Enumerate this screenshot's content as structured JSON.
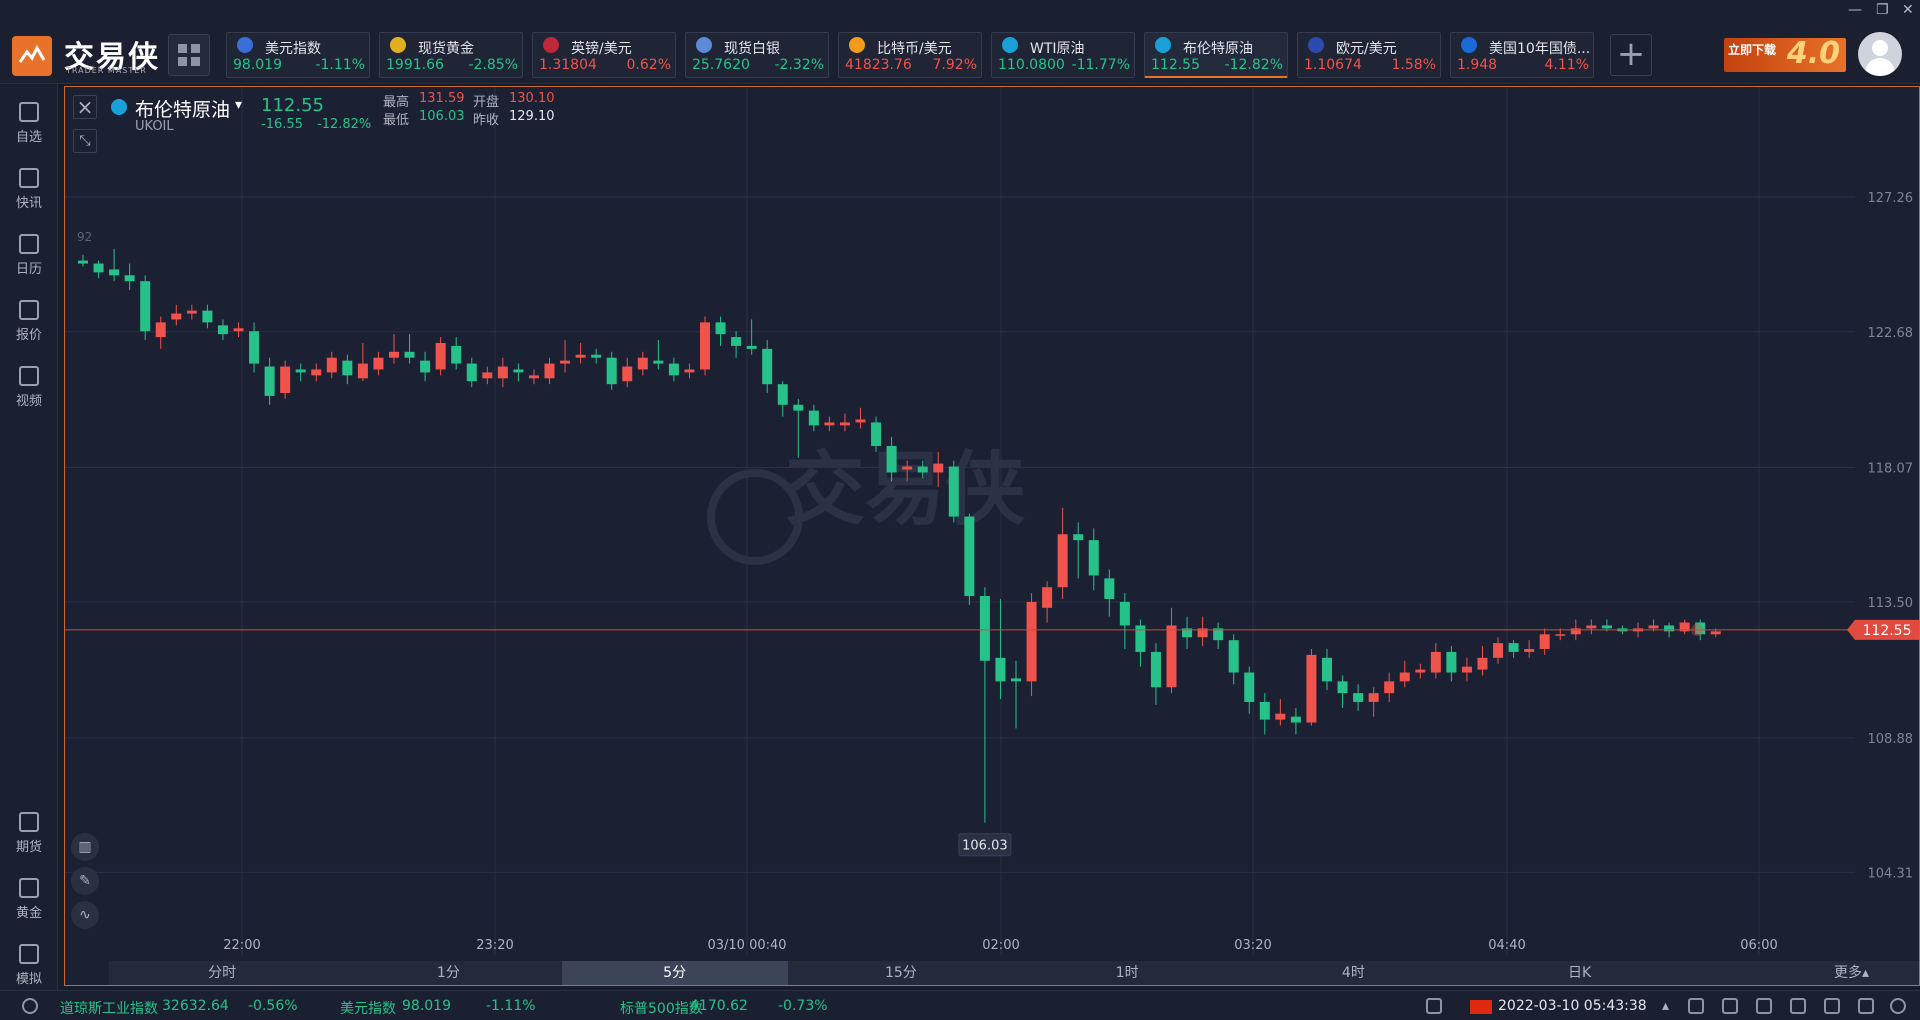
{
  "window": {
    "minimize": "—",
    "restore": "❐",
    "close": "✕"
  },
  "brand": {
    "name": "交易侠",
    "sub": "TRADER MASTER"
  },
  "tickers": [
    {
      "name": "美元指数",
      "price": "98.019",
      "change": "-1.11%",
      "dir": "down",
      "icon_color": "#3a6fd8",
      "icon": "us-flag-icon"
    },
    {
      "name": "现货黄金",
      "price": "1991.66",
      "change": "-2.85%",
      "dir": "down",
      "icon_color": "#e0b020",
      "icon": "gold-icon"
    },
    {
      "name": "英镑/美元",
      "price": "1.31804",
      "change": "0.62%",
      "dir": "up",
      "icon_color": "#c0283a",
      "icon": "uk-flag-icon"
    },
    {
      "name": "现货白银",
      "price": "25.7620",
      "change": "-2.32%",
      "dir": "down",
      "icon_color": "#5a8ad8",
      "icon": "silver-icon"
    },
    {
      "name": "比特币/美元",
      "price": "41823.76",
      "change": "7.92%",
      "dir": "up",
      "icon_color": "#f29a1a",
      "icon": "bitcoin-icon"
    },
    {
      "name": "WTI原油",
      "price": "110.0800",
      "change": "-11.77%",
      "dir": "down",
      "icon_color": "#1aa0d8",
      "icon": "oil-icon"
    },
    {
      "name": "布伦特原油",
      "price": "112.55",
      "change": "-12.82%",
      "dir": "down",
      "icon_color": "#1aa0d8",
      "icon": "oil-icon",
      "active": true
    },
    {
      "name": "欧元/美元",
      "price": "1.10674",
      "change": "1.58%",
      "dir": "up",
      "icon_color": "#2a4ab0",
      "icon": "eu-flag-icon"
    },
    {
      "name": "美国10年国债...",
      "price": "1.948",
      "change": "4.11%",
      "dir": "up",
      "icon_color": "#1a6ad8",
      "icon": "bond-chart-icon"
    }
  ],
  "promo": {
    "text": "立即下载",
    "num": "4.0"
  },
  "sidebar": [
    {
      "label": "自选",
      "icon": "watchlist-icon"
    },
    {
      "label": "快讯",
      "icon": "news-icon"
    },
    {
      "label": "日历",
      "icon": "calendar-icon"
    },
    {
      "label": "报价",
      "icon": "quote-icon"
    },
    {
      "label": "视频",
      "icon": "video-icon"
    },
    {
      "label": "期货",
      "icon": "futures-icon"
    },
    {
      "label": "黄金",
      "icon": "gold-bar-icon"
    },
    {
      "label": "模拟",
      "icon": "simulate-icon"
    }
  ],
  "symbol": {
    "name": "布伦特原油",
    "code": "UKOIL",
    "price": "112.55",
    "change": "-16.55",
    "pct": "-12.82%",
    "high_label": "最高",
    "high": "131.59",
    "open_label": "开盘",
    "open": "130.10",
    "low_label": "最低",
    "low": "106.03",
    "prev_label": "昨收",
    "prev": "129.10"
  },
  "chart_data": {
    "type": "candlestick",
    "ylim": [
      101.5,
      131.0
    ],
    "y_ticks": [
      "127.26",
      "122.68",
      "118.07",
      "113.50",
      "108.88",
      "104.31"
    ],
    "x_ticks": [
      "22:00",
      "23:20",
      "03/10 00:40",
      "02:00",
      "03:20",
      "04:40",
      "06:00"
    ],
    "last_price": "112.55",
    "low_marker": "106.03",
    "partial_label": "92",
    "candles": [
      [
        125.1,
        125.0,
        125.3,
        124.9
      ],
      [
        125.0,
        124.7,
        125.1,
        124.5
      ],
      [
        124.8,
        124.6,
        125.5,
        124.4
      ],
      [
        124.6,
        124.4,
        125.0,
        124.1
      ],
      [
        124.4,
        122.7,
        124.6,
        122.4
      ],
      [
        122.5,
        123.0,
        123.2,
        122.1
      ],
      [
        123.1,
        123.3,
        123.6,
        122.9
      ],
      [
        123.3,
        123.4,
        123.6,
        123.1
      ],
      [
        123.4,
        123.0,
        123.6,
        122.8
      ],
      [
        122.9,
        122.6,
        123.1,
        122.4
      ],
      [
        122.7,
        122.8,
        123.0,
        122.5
      ],
      [
        122.7,
        121.6,
        123.0,
        121.3
      ],
      [
        121.5,
        120.5,
        121.8,
        120.2
      ],
      [
        120.6,
        121.5,
        121.7,
        120.4
      ],
      [
        121.4,
        121.3,
        121.6,
        121.0
      ],
      [
        121.2,
        121.4,
        121.6,
        121.0
      ],
      [
        121.3,
        121.8,
        122.0,
        121.1
      ],
      [
        121.7,
        121.2,
        121.9,
        120.9
      ],
      [
        121.1,
        121.6,
        122.3,
        121.0
      ],
      [
        121.4,
        121.8,
        122.0,
        121.2
      ],
      [
        121.8,
        122.0,
        122.6,
        121.6
      ],
      [
        122.0,
        121.8,
        122.6,
        121.6
      ],
      [
        121.7,
        121.3,
        122.0,
        121.0
      ],
      [
        121.4,
        122.3,
        122.5,
        121.2
      ],
      [
        122.2,
        121.6,
        122.5,
        121.4
      ],
      [
        121.6,
        121.0,
        121.8,
        120.8
      ],
      [
        121.1,
        121.3,
        121.5,
        120.9
      ],
      [
        121.1,
        121.5,
        121.8,
        120.8
      ],
      [
        121.4,
        121.3,
        121.6,
        121.0
      ],
      [
        121.1,
        121.2,
        121.4,
        120.9
      ],
      [
        121.1,
        121.6,
        121.8,
        120.9
      ],
      [
        121.6,
        121.7,
        122.4,
        121.3
      ],
      [
        121.8,
        121.9,
        122.3,
        121.6
      ],
      [
        121.9,
        121.8,
        122.1,
        121.6
      ],
      [
        121.8,
        120.9,
        122.0,
        120.7
      ],
      [
        121.0,
        121.5,
        121.8,
        120.8
      ],
      [
        121.4,
        121.8,
        122.0,
        121.2
      ],
      [
        121.7,
        121.6,
        122.4,
        121.4
      ],
      [
        121.6,
        121.2,
        121.8,
        121.0
      ],
      [
        121.3,
        121.4,
        121.6,
        121.1
      ],
      [
        121.4,
        123.0,
        123.2,
        121.2
      ],
      [
        123.0,
        122.6,
        123.2,
        122.2
      ],
      [
        122.5,
        122.2,
        122.7,
        121.8
      ],
      [
        122.2,
        122.1,
        123.1,
        121.9
      ],
      [
        122.1,
        120.9,
        122.4,
        120.6
      ],
      [
        120.9,
        120.2,
        121.0,
        119.8
      ],
      [
        120.2,
        120.0,
        120.4,
        118.4
      ],
      [
        120.0,
        119.5,
        120.2,
        119.3
      ],
      [
        119.5,
        119.6,
        119.8,
        119.3
      ],
      [
        119.5,
        119.6,
        119.9,
        119.3
      ],
      [
        119.6,
        119.7,
        120.1,
        119.4
      ],
      [
        119.6,
        118.8,
        119.8,
        118.6
      ],
      [
        118.8,
        117.9,
        119.1,
        117.6
      ],
      [
        118.0,
        118.1,
        118.3,
        117.6
      ],
      [
        118.1,
        117.9,
        118.3,
        117.7
      ],
      [
        117.9,
        118.2,
        118.6,
        117.4
      ],
      [
        118.1,
        116.4,
        118.3,
        116.2
      ],
      [
        116.4,
        113.7,
        116.5,
        113.4
      ],
      [
        113.7,
        111.5,
        114.0,
        106.0
      ],
      [
        111.6,
        110.8,
        113.6,
        110.2
      ],
      [
        110.9,
        110.8,
        111.5,
        109.2
      ],
      [
        110.8,
        113.5,
        113.8,
        110.3
      ],
      [
        113.3,
        114.0,
        114.2,
        112.8
      ],
      [
        114.0,
        115.8,
        116.7,
        113.6
      ],
      [
        115.8,
        115.6,
        116.2,
        114.3
      ],
      [
        115.6,
        114.4,
        116.0,
        113.9
      ],
      [
        114.3,
        113.6,
        114.6,
        113.0
      ],
      [
        113.5,
        112.7,
        113.8,
        111.9
      ],
      [
        112.7,
        111.8,
        112.9,
        111.3
      ],
      [
        111.8,
        110.6,
        112.1,
        110.0
      ],
      [
        110.6,
        112.7,
        113.3,
        110.4
      ],
      [
        112.6,
        112.3,
        113.0,
        111.9
      ],
      [
        112.3,
        112.6,
        113.0,
        112.0
      ],
      [
        112.6,
        112.2,
        112.8,
        111.9
      ],
      [
        112.2,
        111.1,
        112.4,
        110.7
      ],
      [
        111.1,
        110.1,
        111.3,
        109.7
      ],
      [
        110.1,
        109.5,
        110.4,
        109.0
      ],
      [
        109.5,
        109.7,
        110.2,
        109.3
      ],
      [
        109.6,
        109.4,
        109.9,
        109.0
      ],
      [
        109.4,
        111.7,
        111.9,
        109.3
      ],
      [
        111.6,
        110.8,
        111.9,
        110.5
      ],
      [
        110.8,
        110.4,
        111.0,
        109.9
      ],
      [
        110.4,
        110.1,
        110.7,
        109.8
      ],
      [
        110.1,
        110.4,
        110.6,
        109.6
      ],
      [
        110.4,
        110.8,
        111.1,
        110.1
      ],
      [
        110.8,
        111.1,
        111.5,
        110.6
      ],
      [
        111.1,
        111.2,
        111.4,
        110.9
      ],
      [
        111.1,
        111.8,
        112.1,
        110.9
      ],
      [
        111.8,
        111.1,
        112.0,
        110.8
      ],
      [
        111.1,
        111.3,
        111.6,
        110.8
      ],
      [
        111.2,
        111.6,
        112.0,
        111.0
      ],
      [
        111.6,
        112.1,
        112.3,
        111.4
      ],
      [
        112.1,
        111.8,
        112.2,
        111.6
      ],
      [
        111.8,
        111.9,
        112.2,
        111.6
      ],
      [
        111.9,
        112.4,
        112.6,
        111.7
      ],
      [
        112.4,
        112.4,
        112.6,
        112.2
      ],
      [
        112.4,
        112.6,
        112.9,
        112.2
      ],
      [
        112.6,
        112.7,
        112.9,
        112.4
      ],
      [
        112.7,
        112.6,
        112.9,
        112.5
      ],
      [
        112.6,
        112.5,
        112.7,
        112.4
      ],
      [
        112.5,
        112.6,
        112.8,
        112.3
      ],
      [
        112.6,
        112.7,
        112.9,
        112.5
      ],
      [
        112.7,
        112.5,
        112.8,
        112.3
      ],
      [
        112.5,
        112.8,
        112.9,
        112.4
      ],
      [
        112.8,
        112.4,
        112.9,
        112.2
      ],
      [
        112.4,
        112.5,
        112.6,
        112.3
      ]
    ]
  },
  "intervals": [
    "分时",
    "1分",
    "5分",
    "15分",
    "1时",
    "4时",
    "日K",
    "更多▴"
  ],
  "active_interval": "5分",
  "status": {
    "items": [
      {
        "name": "道琼斯工业指数",
        "value": "32632.64",
        "chg": "-0.56%"
      },
      {
        "name": "美元指数",
        "value": "98.019",
        "chg": "-1.11%"
      },
      {
        "name": "标普500指数",
        "value": "4170.62",
        "chg": "-0.73%"
      }
    ],
    "datetime": "2022-03-10 05:43:38"
  }
}
